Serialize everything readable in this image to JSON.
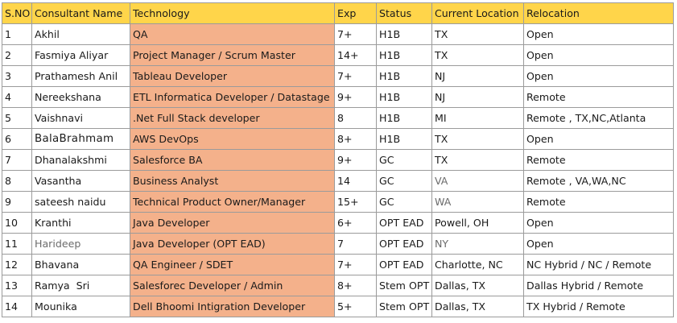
{
  "headers": [
    "S.NO",
    "Consultant Name",
    "Technology",
    "Exp",
    "Status",
    "Current Location",
    "Relocation"
  ],
  "rows": [
    {
      "sno": "1",
      "name": "Akhil",
      "tech": "QA",
      "exp": "7+",
      "status": "H1B",
      "location": "TX",
      "relocation": "Open"
    },
    {
      "sno": "2",
      "name": "Fasmiya Aliyar",
      "tech": "Project Manager / Scrum Master",
      "exp": "14+",
      "status": "H1B",
      "location": "TX",
      "relocation": "Open"
    },
    {
      "sno": "3",
      "name": "Prathamesh Anil",
      "tech": "Tableau Developer",
      "exp": "7+",
      "status": "H1B",
      "location": "NJ",
      "relocation": "Open"
    },
    {
      "sno": "4",
      "name": "Nereekshana",
      "tech": "ETL Informatica Developer / Datastage",
      "exp": "9+",
      "status": "H1B",
      "location": "NJ",
      "relocation": "Remote"
    },
    {
      "sno": "5",
      "name": "Vaishnavi",
      "tech": ".Net Full Stack developer",
      "exp": "8",
      "status": "H1B",
      "location": "MI",
      "relocation": "Remote , TX,NC,Atlanta"
    },
    {
      "sno": "6",
      "name": "BalaBrahmam",
      "tech": "AWS DevOps",
      "exp": "8+",
      "status": "H1B",
      "location": "TX",
      "relocation": "Open"
    },
    {
      "sno": "7",
      "name": "Dhanalakshmi",
      "tech": "Salesforce BA",
      "exp": "9+",
      "status": "GC",
      "location": "TX",
      "relocation": "Remote"
    },
    {
      "sno": "8",
      "name": "Vasantha",
      "tech": "Business Analyst",
      "exp": "14",
      "status": "GC",
      "location": "VA",
      "relocation": "Remote , VA,WA,NC"
    },
    {
      "sno": "9",
      "name": "sateesh naidu",
      "tech": "Technical Product Owner/Manager",
      "exp": "15+",
      "status": "GC",
      "location": "WA",
      "relocation": "Remote"
    },
    {
      "sno": "10",
      "name": "Kranthi",
      "tech": "Java Developer",
      "exp": "6+",
      "status": "OPT EAD",
      "location": "Powell, OH",
      "relocation": "Open"
    },
    {
      "sno": "11",
      "name": "Harideep",
      "tech": "Java Developer (OPT EAD)",
      "exp": "7",
      "status": "OPT EAD",
      "location": "NY",
      "relocation": "Open"
    },
    {
      "sno": "12",
      "name": "Bhavana",
      "tech": "QA Engineer / SDET",
      "exp": "7+",
      "status": "OPT EAD",
      "location": "Charlotte, NC",
      "relocation": "NC Hybrid / NC / Remote"
    },
    {
      "sno": "13",
      "name": "Ramya  Sri",
      "tech": "Salesforec Developer / Admin",
      "exp": "8+",
      "status": "Stem OPT",
      "location": "Dallas, TX",
      "relocation": "Dallas Hybrid / Remote"
    },
    {
      "sno": "14",
      "name": "Mounika",
      "tech": "Dell Bhoomi Intigration Developer",
      "exp": "5+",
      "status": "Stem OPT",
      "location": "Dallas, TX",
      "relocation": "TX Hybrid / Remote"
    }
  ],
  "colors": {
    "header_bg": "#ffd54a",
    "technology_bg": "#f4b18b",
    "border": "#9b9b9b"
  }
}
